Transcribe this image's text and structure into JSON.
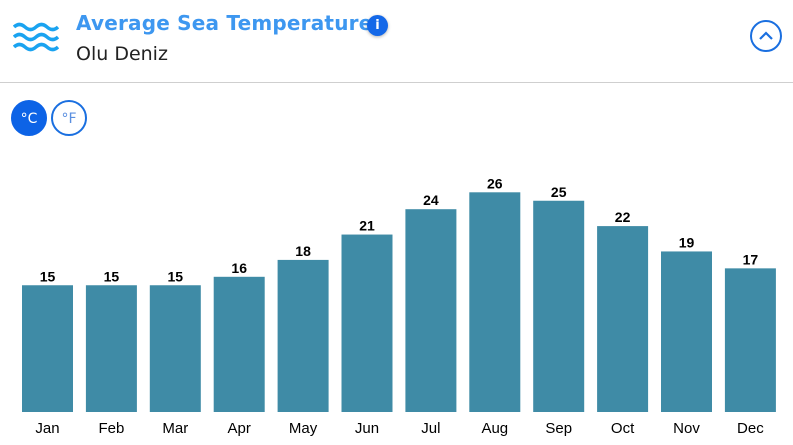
{
  "header": {
    "title": "Average Sea Temperature",
    "subtitle": "Olu Deniz",
    "icon": "waves-icon",
    "info_icon": "info-icon",
    "collapse_icon": "chevron-up-icon"
  },
  "units": {
    "celsius": "°C",
    "fahrenheit": "°F",
    "selected": "celsius"
  },
  "colors": {
    "bar": "#3f8ba6",
    "accent": "#0d63e6",
    "title": "#3d97f0"
  },
  "chart_data": {
    "type": "bar",
    "categories": [
      "Jan",
      "Feb",
      "Mar",
      "Apr",
      "May",
      "Jun",
      "Jul",
      "Aug",
      "Sep",
      "Oct",
      "Nov",
      "Dec"
    ],
    "values": [
      15,
      15,
      15,
      16,
      18,
      21,
      24,
      26,
      25,
      22,
      19,
      17
    ],
    "title": "",
    "xlabel": "",
    "ylabel": "",
    "ylim": [
      0,
      27
    ],
    "grid": false,
    "data_labels": true
  }
}
